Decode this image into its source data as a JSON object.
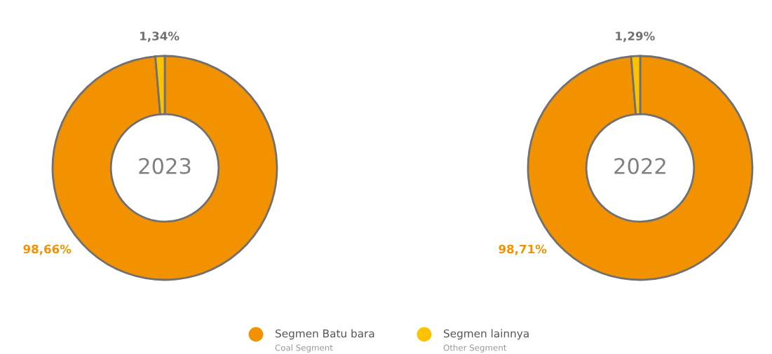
{
  "chart_data": [
    {
      "type": "donut",
      "title": "2023",
      "categories": [
        "Segmen Batu bara\nCoal Segment",
        "Segmen lainnya\nOther Segment"
      ],
      "values": [
        98.66,
        1.34
      ],
      "colors": [
        "#f39200",
        "#fdc300"
      ],
      "value_labels": [
        "98,66%",
        "1,34%"
      ],
      "legend": "bottom"
    },
    {
      "type": "donut",
      "title": "2022",
      "values": [
        98.71,
        1.29
      ],
      "colors": [
        "#f39200",
        "#fdc300"
      ],
      "value_labels": [
        "98,71%",
        "1,29%"
      ]
    }
  ]
}
